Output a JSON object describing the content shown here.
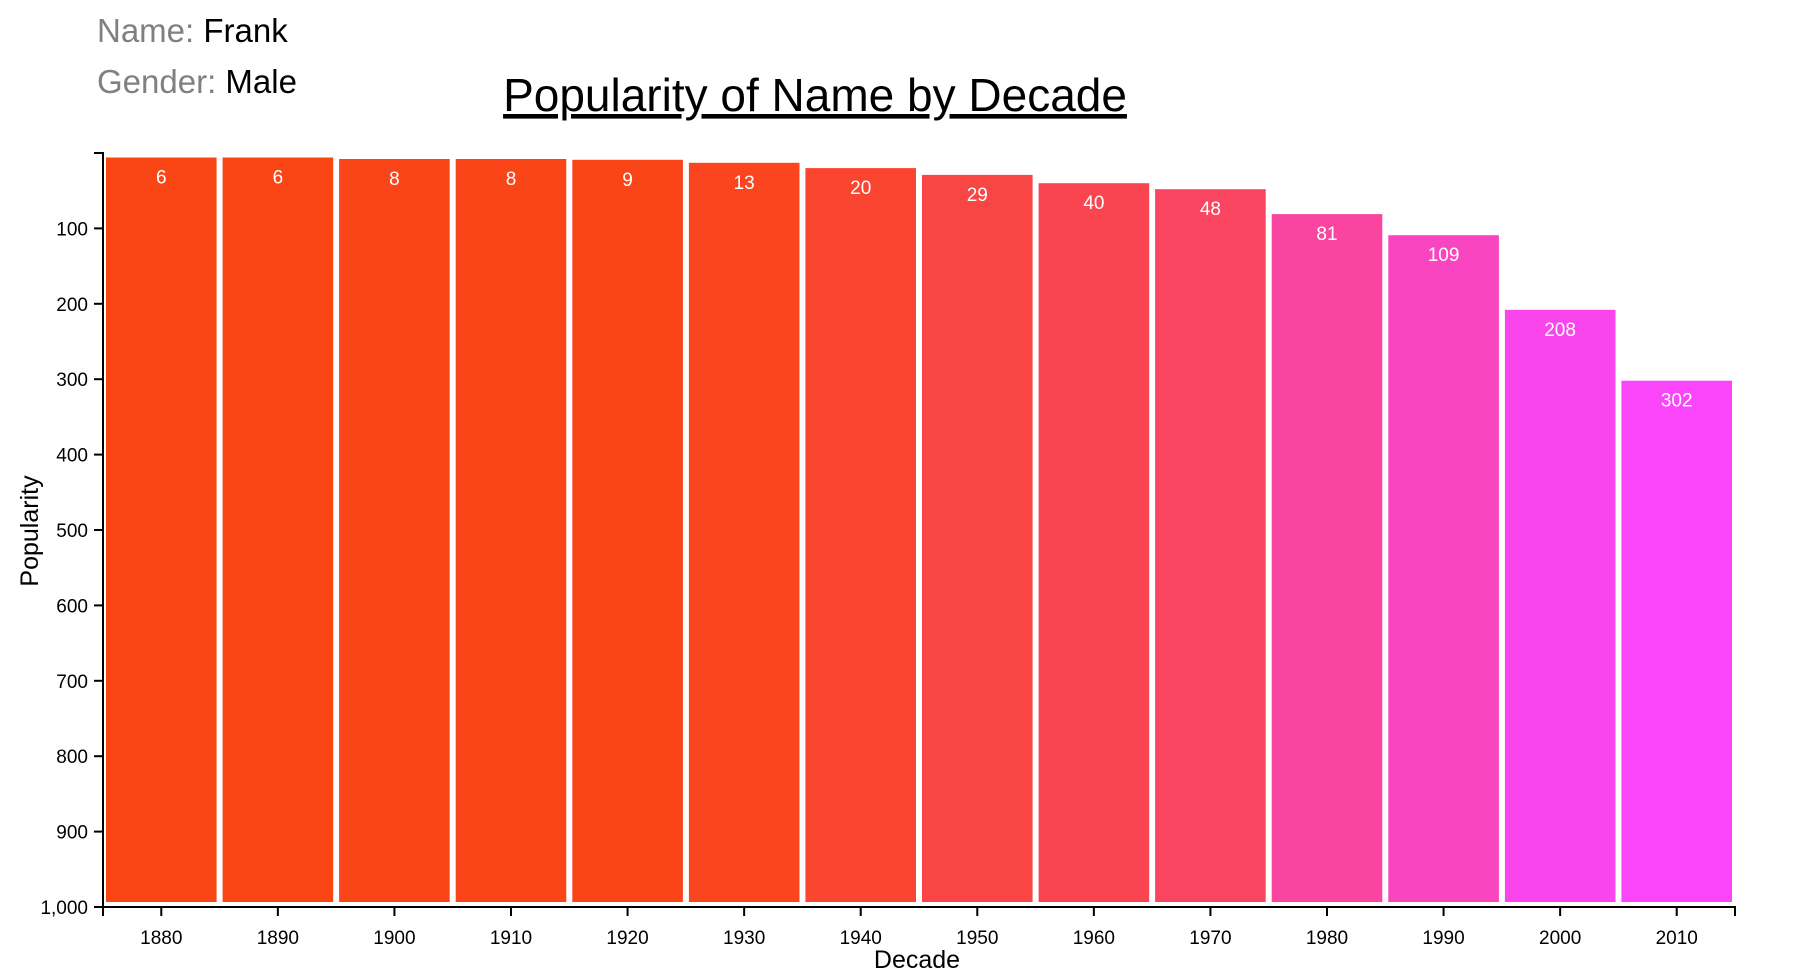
{
  "info": {
    "name_label": "Name:",
    "name_value": "Frank",
    "gender_label": "Gender:",
    "gender_value": "Male"
  },
  "chart_data": {
    "type": "bar",
    "title": "Popularity of Name by Decade",
    "xlabel": "Decade",
    "ylabel": "Popularity",
    "categories": [
      "1880",
      "1890",
      "1900",
      "1910",
      "1920",
      "1930",
      "1940",
      "1950",
      "1960",
      "1970",
      "1980",
      "1990",
      "2000",
      "2010"
    ],
    "values": [
      6,
      6,
      8,
      8,
      9,
      13,
      20,
      29,
      40,
      48,
      81,
      109,
      208,
      302
    ],
    "ylim": [
      0,
      1000
    ],
    "y_axis_inverted": true,
    "bars_hang_from_top": true,
    "y_ticks": [
      100,
      200,
      300,
      400,
      500,
      600,
      700,
      800,
      900,
      1000
    ],
    "y_tick_labels": [
      "100",
      "200",
      "300",
      "400",
      "500",
      "600",
      "700",
      "800",
      "900",
      "1,000"
    ],
    "bar_colors": [
      "#fa4515",
      "#fa4515",
      "#fa4518",
      "#fa4518",
      "#fa4519",
      "#fa451f",
      "#fa4530",
      "#fa4545",
      "#fa4550",
      "#fa4560",
      "#fa45a0",
      "#fa45c0",
      "#fa45ec",
      "#fa45fa"
    ],
    "label_color": "#ffffff",
    "grid": false
  }
}
